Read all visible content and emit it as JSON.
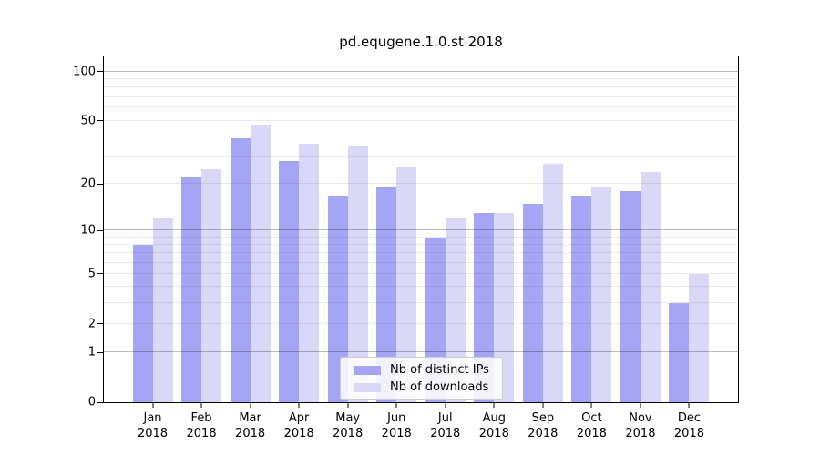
{
  "title": "pd.equgene.1.0.st 2018",
  "legend": {
    "items": [
      {
        "label": "Nb of distinct IPs",
        "color": "#a5a5f5"
      },
      {
        "label": "Nb of downloads",
        "color": "#d9d9f7"
      }
    ]
  },
  "chart_data": {
    "type": "bar",
    "title": "pd.equgene.1.0.st 2018",
    "year": "2018",
    "months": [
      "Jan",
      "Feb",
      "Mar",
      "Apr",
      "May",
      "Jun",
      "Jul",
      "Aug",
      "Sep",
      "Oct",
      "Nov",
      "Dec"
    ],
    "series": [
      {
        "name": "Nb of distinct IPs",
        "color": "#a5a5f5",
        "values": [
          8,
          22,
          39,
          28,
          17,
          19,
          9,
          13,
          15,
          17,
          18,
          3
        ]
      },
      {
        "name": "Nb of downloads",
        "color": "#d9d9f7",
        "values": [
          12,
          25,
          47,
          36,
          35,
          26,
          12,
          13,
          27,
          19,
          24,
          5
        ]
      }
    ],
    "yscale": "log10(1+x)",
    "ylim": [
      0,
      124
    ],
    "y_ticks": [
      100,
      50,
      20,
      10,
      5,
      2,
      1,
      0
    ],
    "y_major_gridlines": [
      100,
      10,
      1
    ],
    "y_minor_gridlines": [
      90,
      80,
      70,
      60,
      50,
      40,
      30,
      20,
      9,
      8,
      7,
      6,
      5,
      4,
      3,
      2
    ],
    "xlabel": "",
    "ylabel": "",
    "grid": true,
    "legend_position": "lower center"
  }
}
